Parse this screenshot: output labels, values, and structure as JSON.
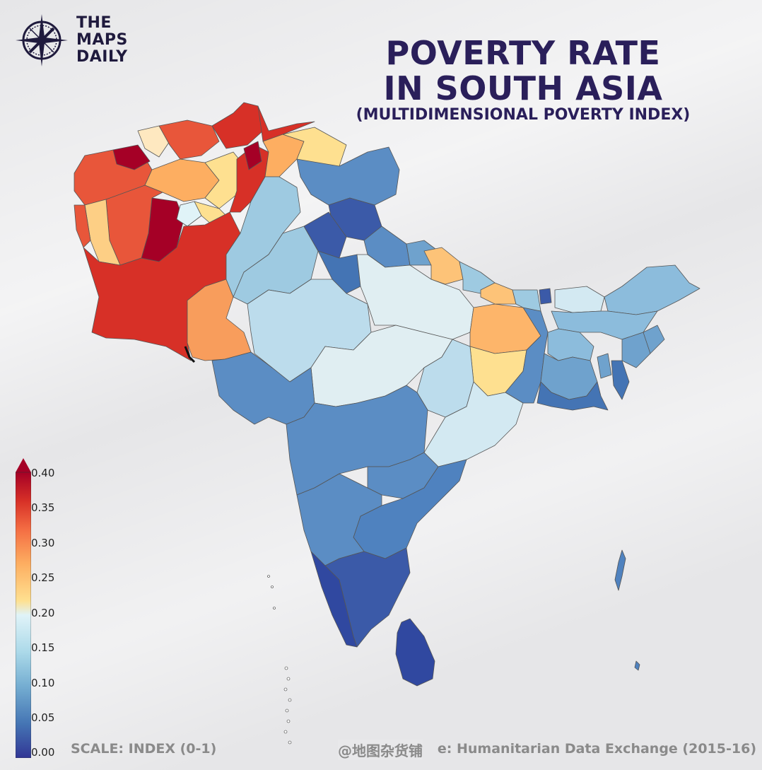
{
  "brand": {
    "line1": "THE",
    "line2": "MAPS",
    "line3": "DAILY",
    "icon": "compass-rose-icon"
  },
  "title": {
    "line1": "POVERTY RATE",
    "line2": "IN SOUTH ASIA",
    "subtitle": "(MULTIDIMENSIONAL POVERTY INDEX)"
  },
  "legend": {
    "ticks": [
      "0.40",
      "0.35",
      "0.30",
      "0.25",
      "0.20",
      "0.15",
      "0.10",
      "0.05",
      "0.00"
    ],
    "colors": [
      "#313695",
      "#4575b4",
      "#74add1",
      "#abd9e9",
      "#e0f3f8",
      "#fee090",
      "#fdae61",
      "#f46d43",
      "#d73027",
      "#a50026"
    ]
  },
  "footer": {
    "scale": "SCALE: INDEX (0-1)",
    "source": "e: Humanitarian Data Exchange (2015-16)",
    "watermark": "@地图杂货铺"
  }
}
